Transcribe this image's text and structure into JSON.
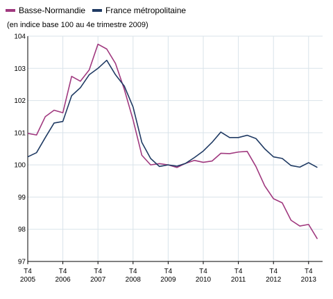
{
  "legend": {
    "items": [
      {
        "label": "Basse-Normandie",
        "color": "#a0397f"
      },
      {
        "label": "France métropolitaine",
        "color": "#1f3a63"
      }
    ]
  },
  "subtitle": "(en indice base 100 au 4e trimestre 2009)",
  "chart_data": {
    "type": "line",
    "title": "",
    "subtitle": "(en indice base 100 au 4e trimestre 2009)",
    "xlabel": "",
    "ylabel": "",
    "ylim": [
      97,
      104
    ],
    "yticks": [
      97,
      98,
      99,
      100,
      101,
      102,
      103,
      104
    ],
    "x_start_label": "T4 2005",
    "x_step": "quarter",
    "xtick_labels": [
      {
        "top": "T4",
        "bottom": "2005"
      },
      {
        "top": "T4",
        "bottom": "2006"
      },
      {
        "top": "T4",
        "bottom": "2007"
      },
      {
        "top": "T4",
        "bottom": "2008"
      },
      {
        "top": "T4",
        "bottom": "2009"
      },
      {
        "top": "T4",
        "bottom": "2010"
      },
      {
        "top": "T4",
        "bottom": "2011"
      },
      {
        "top": "T4",
        "bottom": "2012"
      },
      {
        "top": "T4",
        "bottom": "2013"
      }
    ],
    "grid": true,
    "legend_position": "top-left",
    "series": [
      {
        "name": "Basse-Normandie",
        "color": "#a0397f",
        "values": [
          100.98,
          100.93,
          101.5,
          101.7,
          101.62,
          102.75,
          102.6,
          102.95,
          103.75,
          103.6,
          103.15,
          102.35,
          101.4,
          100.3,
          100.0,
          100.04,
          100.0,
          99.92,
          100.05,
          100.14,
          100.08,
          100.12,
          100.36,
          100.35,
          100.4,
          100.42,
          99.95,
          99.35,
          98.95,
          98.82,
          98.28,
          98.1,
          98.15,
          97.7
        ]
      },
      {
        "name": "France métropolitaine",
        "color": "#1f3a63",
        "values": [
          100.25,
          100.38,
          100.85,
          101.3,
          101.35,
          102.15,
          102.4,
          102.8,
          103.0,
          103.25,
          102.8,
          102.45,
          101.8,
          100.7,
          100.2,
          99.95,
          100.0,
          99.96,
          100.05,
          100.23,
          100.43,
          100.7,
          101.02,
          100.85,
          100.85,
          100.92,
          100.82,
          100.5,
          100.25,
          100.2,
          99.98,
          99.93,
          100.07,
          99.92
        ]
      }
    ]
  }
}
